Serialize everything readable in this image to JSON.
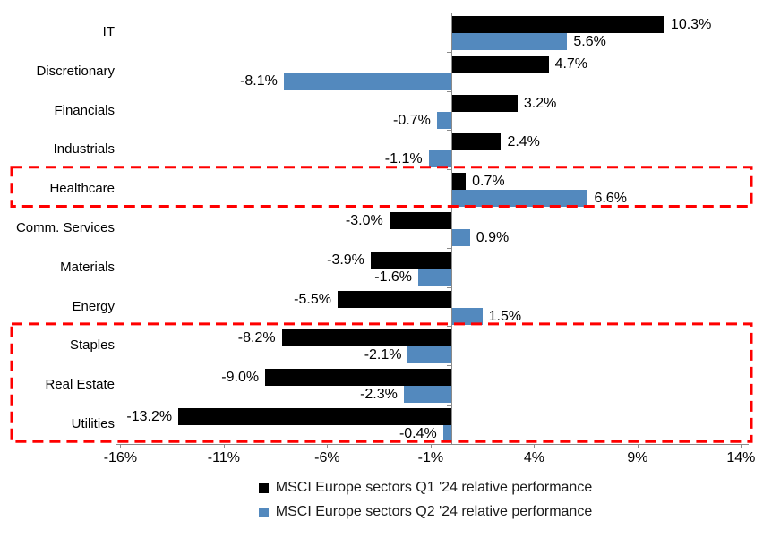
{
  "chart_data": {
    "type": "bar",
    "orientation": "horizontal",
    "value_suffix": "%",
    "categories": [
      "IT",
      "Discretionary",
      "Financials",
      "Industrials",
      "Healthcare",
      "Comm. Services",
      "Materials",
      "Energy",
      "Staples",
      "Real Estate",
      "Utilities"
    ],
    "series": [
      {
        "name": "MSCI Europe sectors Q1 '24 relative performance",
        "color": "#000000",
        "values": [
          10.3,
          4.7,
          3.2,
          2.4,
          0.7,
          -3.0,
          -3.9,
          -5.5,
          -8.2,
          -9.0,
          -13.2
        ]
      },
      {
        "name": "MSCI Europe sectors Q2 '24 relative performance",
        "color": "#5389BE",
        "values": [
          5.6,
          -8.1,
          -0.7,
          -1.1,
          6.6,
          0.9,
          -1.6,
          1.5,
          -2.1,
          -2.3,
          -0.4
        ]
      }
    ],
    "x_ticks": [
      {
        "label": "-16%",
        "value": -16
      },
      {
        "label": "-11%",
        "value": -11
      },
      {
        "label": "-6%",
        "value": -6
      },
      {
        "label": "-1%",
        "value": -1
      },
      {
        "label": "4%",
        "value": 4
      },
      {
        "label": "9%",
        "value": 9
      },
      {
        "label": "14%",
        "value": 14
      }
    ],
    "xlim": [
      -16,
      14
    ],
    "grid": false,
    "legend_position": "bottom",
    "highlight_color": "#FF0000",
    "highlight_boxes": [
      {
        "from_category": "Healthcare",
        "to_category": "Healthcare"
      },
      {
        "from_category": "Staples",
        "to_category": "Utilities"
      }
    ]
  }
}
